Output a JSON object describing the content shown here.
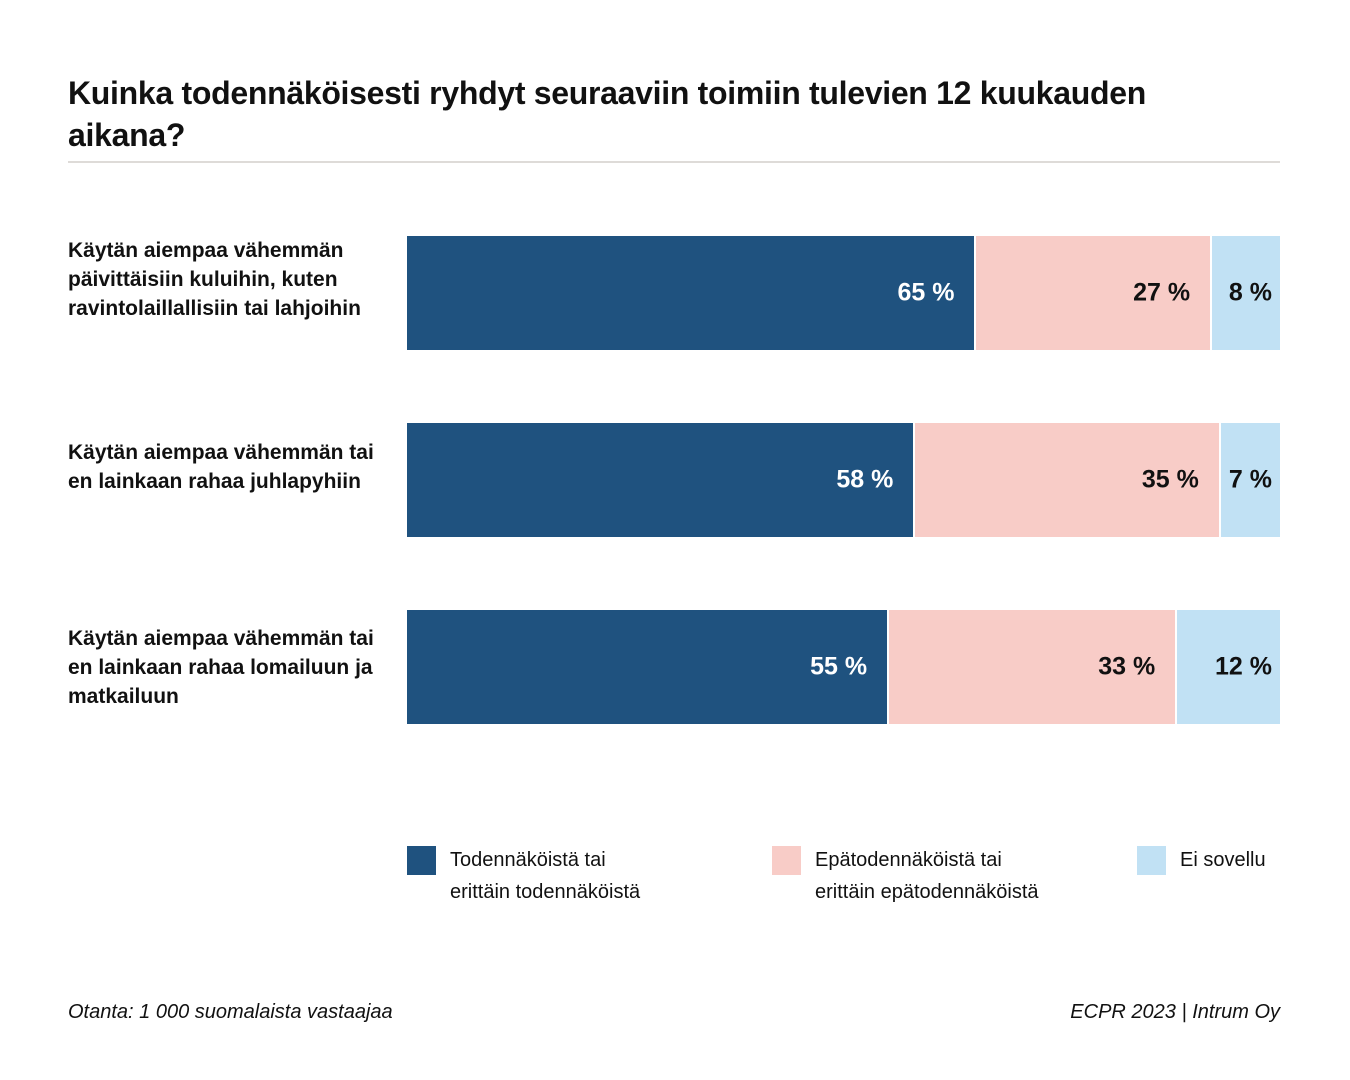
{
  "title": "Kuinka todennäköisesti ryhdyt seuraaviin toimiin tulevien 12 kuukauden aikana?",
  "footer": {
    "left": "Otanta: 1 000 suomalaista vastaajaa",
    "right": "ECPR 2023 | Intrum Oy"
  },
  "chart_data": {
    "type": "bar",
    "orientation": "horizontal",
    "stacked": true,
    "title": "Kuinka todennäköisesti ryhdyt seuraaviin toimiin tulevien 12 kuukauden aikana?",
    "xlabel": "",
    "ylabel": "",
    "xlim": [
      0,
      100
    ],
    "unit": "%",
    "grid": false,
    "legend_position": "bottom",
    "categories": [
      "Käytän aiempaa vähemmän päivittäisiin kuluihin, kuten ravintolaillallisiin tai lahjoihin",
      "Käytän aiempaa vähemmän tai en lainkaan rahaa juhlapyhiin",
      "Käytän aiempaa vähemmän tai en lainkaan rahaa lomailuun ja matkailuun"
    ],
    "series": [
      {
        "name": "Todennäköistä tai erittäin todennäköistä",
        "color": "#1f527f",
        "label_color": "#ffffff",
        "values": [
          65,
          58,
          55
        ],
        "labels": [
          "65 %",
          "58 %",
          "55 %"
        ]
      },
      {
        "name": "Epätodennäköistä tai erittäin epätodennäköistä",
        "color": "#f8ccc7",
        "label_color": "#111111",
        "values": [
          27,
          35,
          33
        ],
        "labels": [
          "27 %",
          "35 %",
          "33 %"
        ]
      },
      {
        "name": "Ei sovellu",
        "color": "#c1e1f4",
        "label_color": "#111111",
        "values": [
          8,
          7,
          12
        ],
        "labels": [
          "8 %",
          "7 %",
          "12 %"
        ]
      }
    ],
    "legend": [
      {
        "line1": "Todennäköistä tai",
        "line2": "erittäin todennäköistä"
      },
      {
        "line1": "Epätodennäköistä tai",
        "line2": "erittäin epätodennäköistä"
      },
      {
        "line1": "Ei sovellu",
        "line2": ""
      }
    ]
  }
}
